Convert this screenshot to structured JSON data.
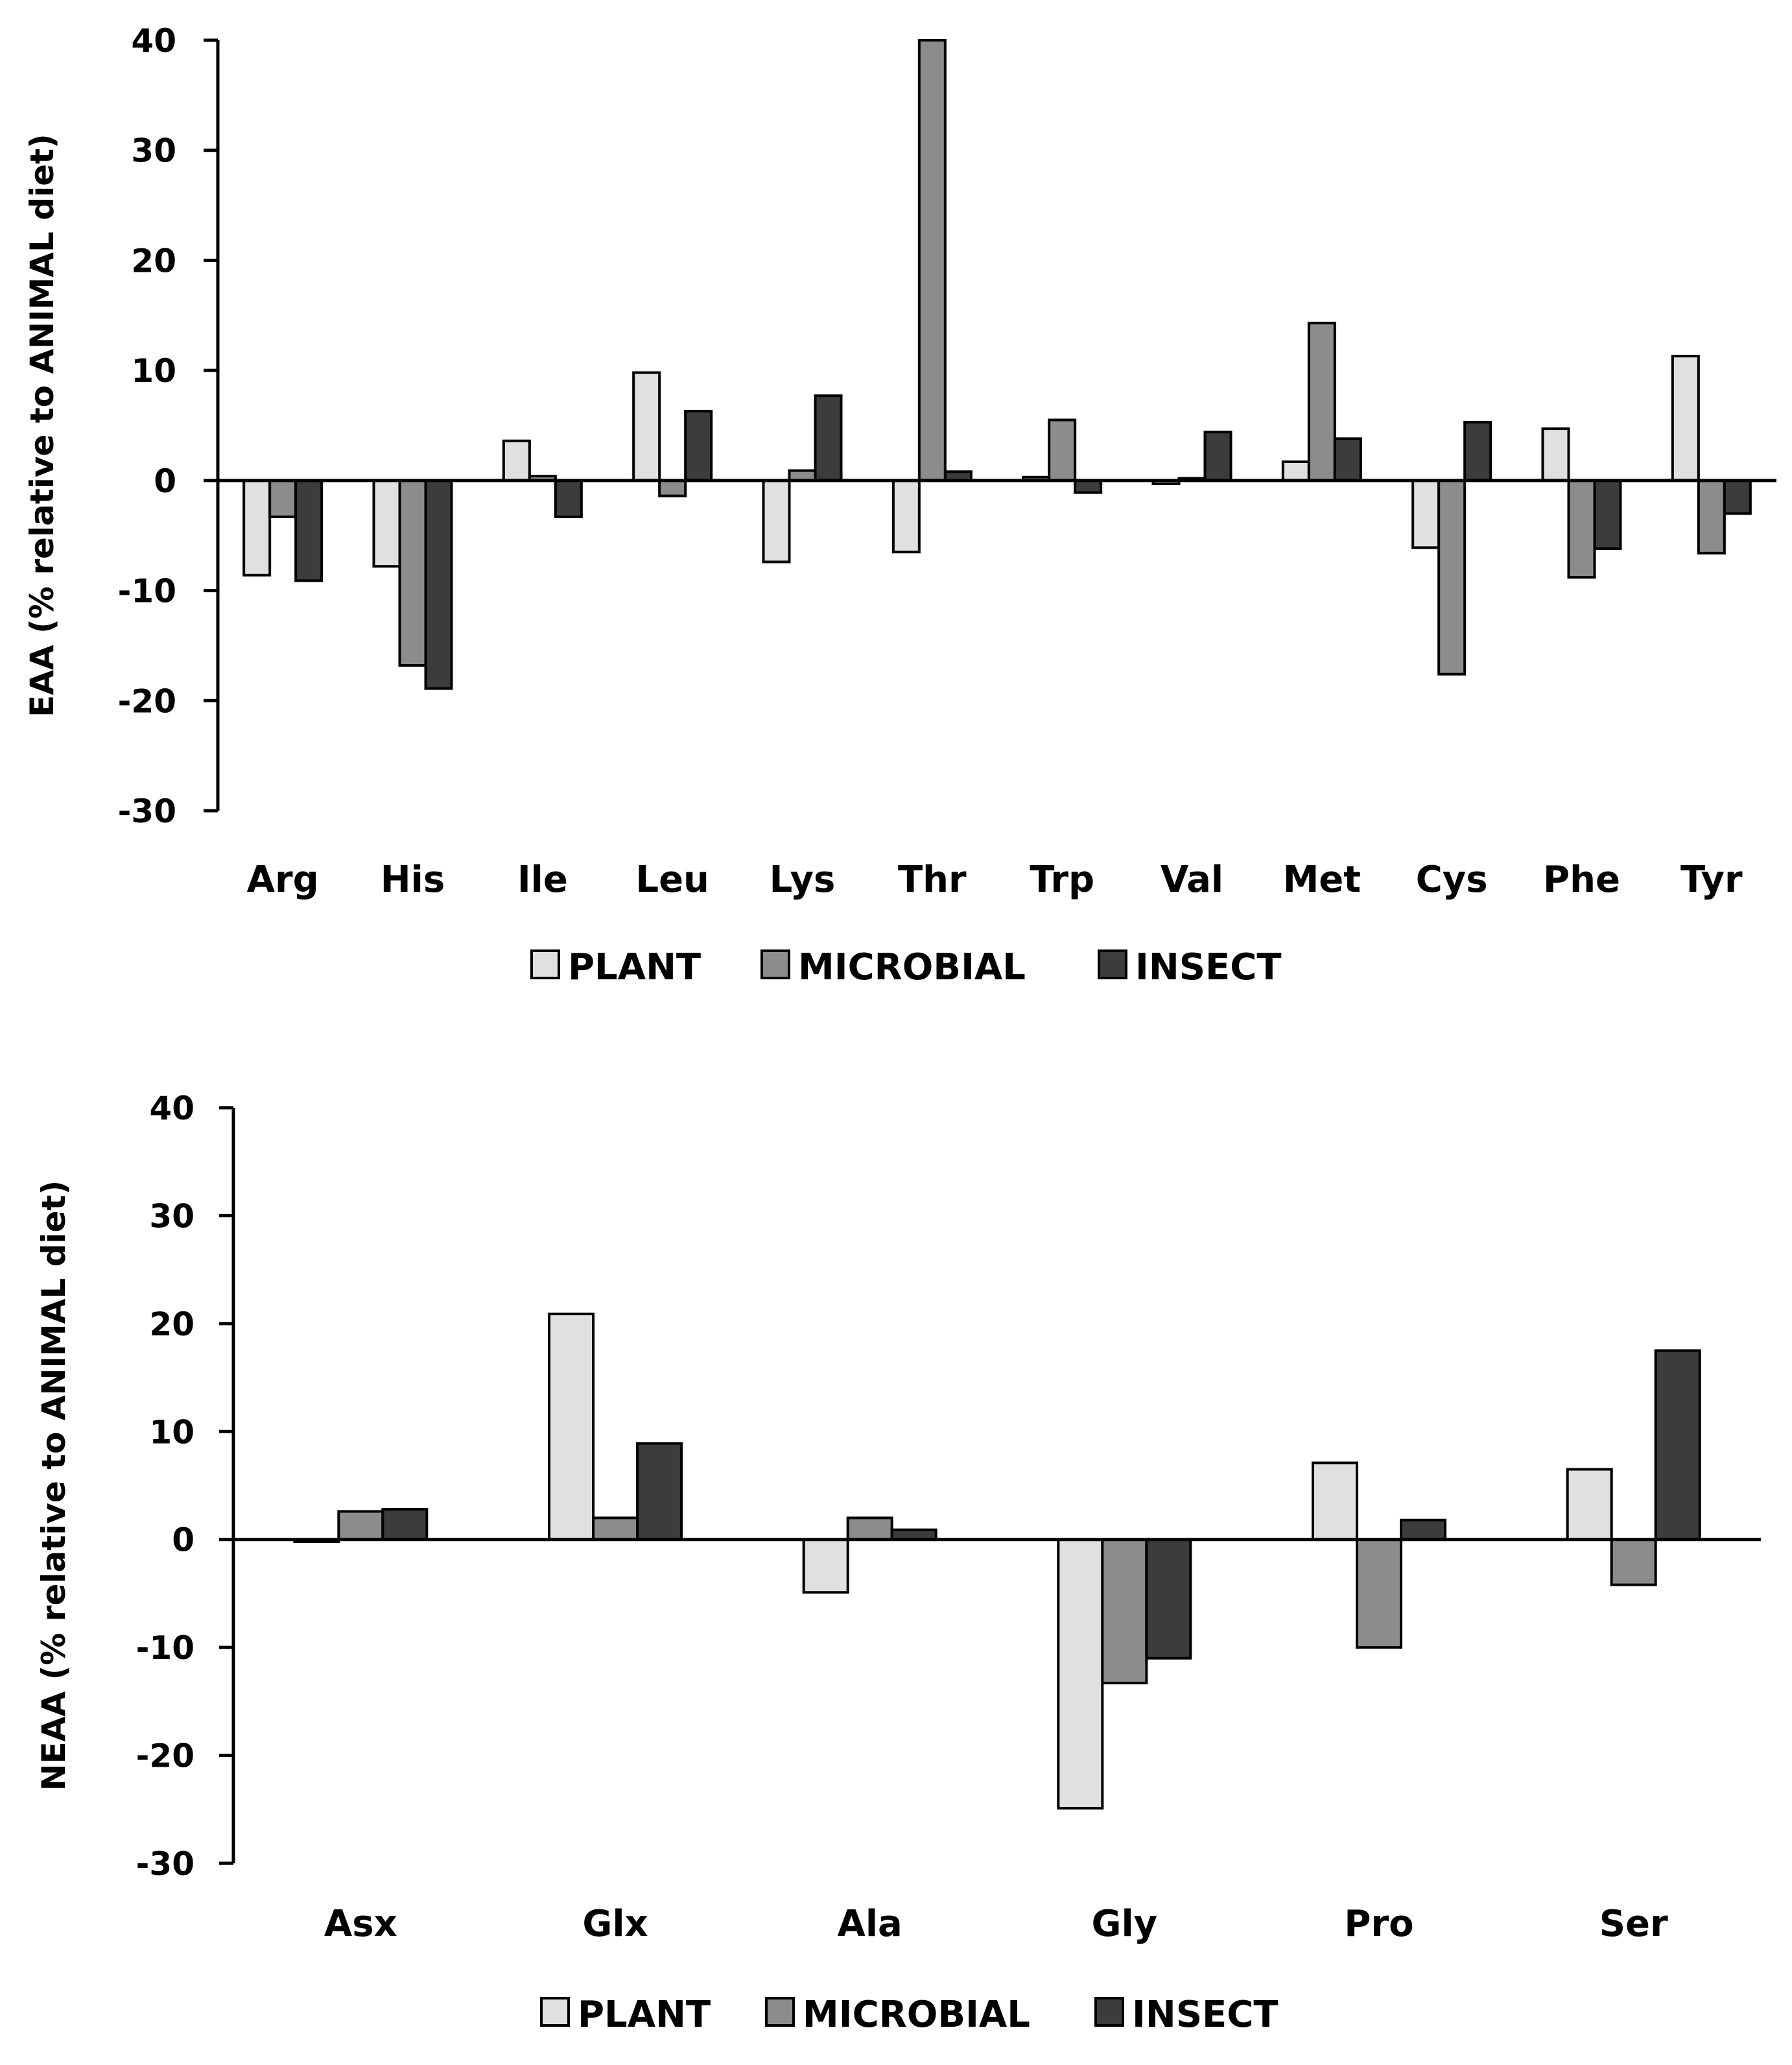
{
  "chart_data": [
    {
      "type": "bar",
      "ylabel": "EAA (% relative to ANIMAL diet)",
      "ylim": [
        -30,
        40
      ],
      "yticks": [
        "40",
        "30",
        "20",
        "10",
        "0",
        "-10",
        "-20",
        "-30"
      ],
      "categories": [
        "Arg",
        "His",
        "Ile",
        "Leu",
        "Lys",
        "Thr",
        "Trp",
        "Val",
        "Met",
        "Cys",
        "Phe",
        "Tyr"
      ],
      "series": [
        {
          "name": "PLANT",
          "color": "#e0e0e0",
          "values": [
            -8.6,
            -7.8,
            3.6,
            9.8,
            -7.4,
            -6.5,
            0.3,
            -0.3,
            1.7,
            -6.1,
            4.7,
            11.3
          ]
        },
        {
          "name": "MICROBIAL",
          "color": "#8c8c8c",
          "values": [
            -3.3,
            -16.8,
            0.4,
            -1.4,
            0.9,
            40.0,
            5.5,
            0.2,
            14.3,
            -17.6,
            -8.8,
            -6.6
          ]
        },
        {
          "name": "INSECT",
          "color": "#3c3c3c",
          "values": [
            -9.1,
            -18.9,
            -3.3,
            6.3,
            7.7,
            0.8,
            -1.1,
            4.4,
            3.8,
            5.3,
            -6.2,
            -3.0
          ]
        }
      ],
      "legend": [
        "PLANT",
        "MICROBIAL",
        "INSECT"
      ]
    },
    {
      "type": "bar",
      "ylabel": "NEAA (% relative to ANIMAL diet)",
      "ylim": [
        -30,
        40
      ],
      "yticks": [
        "40",
        "30",
        "20",
        "10",
        "0",
        "-10",
        "-20",
        "-30"
      ],
      "categories": [
        "Asx",
        "Glx",
        "Ala",
        "Gly",
        "Pro",
        "Ser"
      ],
      "series": [
        {
          "name": "PLANT",
          "color": "#e0e0e0",
          "values": [
            -0.2,
            20.9,
            -4.9,
            -24.9,
            7.1,
            6.5
          ]
        },
        {
          "name": "MICROBIAL",
          "color": "#8c8c8c",
          "values": [
            2.6,
            2.0,
            2.0,
            -13.3,
            -10.0,
            -4.2
          ]
        },
        {
          "name": "INSECT",
          "color": "#3c3c3c",
          "values": [
            2.8,
            8.9,
            0.9,
            -11.0,
            1.8,
            17.5
          ]
        }
      ],
      "legend": [
        "PLANT",
        "MICROBIAL",
        "INSECT"
      ]
    }
  ]
}
